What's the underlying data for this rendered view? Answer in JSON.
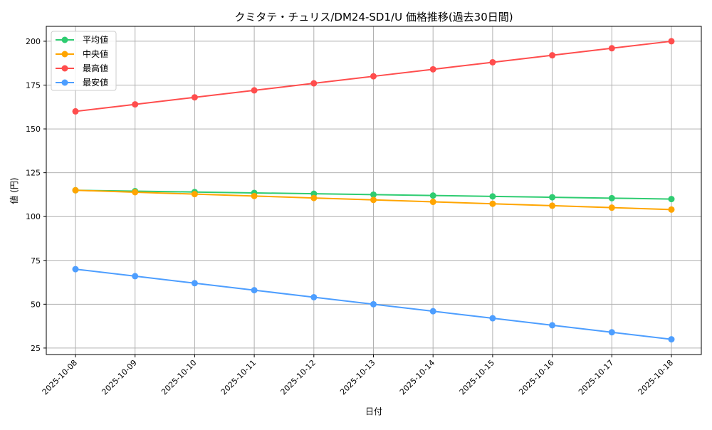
{
  "chart_data": {
    "type": "line",
    "title": "クミタテ・チュリス/DM24-SD1/U 価格推移(過去30日間)",
    "xlabel": "日付",
    "ylabel": "値 (円)",
    "ylim": [
      21.3,
      208.5
    ],
    "yticks": [
      25,
      50,
      75,
      100,
      125,
      150,
      175,
      200
    ],
    "grid": true,
    "legend_position": "top-left",
    "x": [
      "2025-10-08",
      "2025-10-09",
      "2025-10-10",
      "2025-10-11",
      "2025-10-12",
      "2025-10-13",
      "2025-10-14",
      "2025-10-15",
      "2025-10-16",
      "2025-10-17",
      "2025-10-18"
    ],
    "series": [
      {
        "name": "平均値",
        "color": "#2ecc71",
        "values": [
          115,
          114.5,
          114,
          113.5,
          113,
          112.5,
          112,
          111.5,
          111,
          110.5,
          110
        ]
      },
      {
        "name": "中央値",
        "color": "#ffa500",
        "values": [
          115,
          113.9,
          112.8,
          111.7,
          110.6,
          109.5,
          108.4,
          107.3,
          106.2,
          105.1,
          104
        ]
      },
      {
        "name": "最高値",
        "color": "#ff4d4d",
        "values": [
          160,
          164,
          168,
          172,
          176,
          180,
          184,
          188,
          192,
          196,
          200
        ]
      },
      {
        "name": "最安値",
        "color": "#4d9eff",
        "values": [
          70,
          66,
          62,
          58,
          54,
          50,
          46,
          42,
          38,
          34,
          30
        ]
      }
    ]
  }
}
